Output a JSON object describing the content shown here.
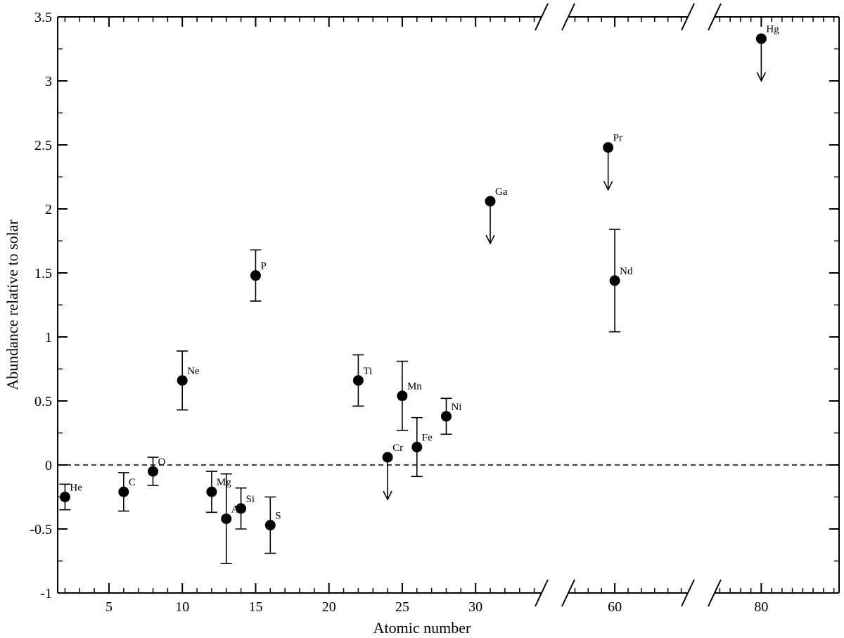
{
  "chart_data": {
    "type": "scatter",
    "xlabel": "Atomic number",
    "ylabel": "Abundance relative to solar",
    "ylim": [
      -1,
      3.5
    ],
    "y_ticks": [
      "-1",
      "-0.5",
      "0",
      "0.5",
      "1",
      "1.5",
      "2",
      "2.5",
      "3",
      "3.5"
    ],
    "reference_line": {
      "y": 0,
      "style": "dashed"
    },
    "axis_breaks": true,
    "panels": [
      {
        "xlim": [
          1.5,
          34.5
        ],
        "x_ticks": [
          "5",
          "10",
          "15",
          "20",
          "25",
          "30"
        ]
      },
      {
        "xlim": [
          53,
          71
        ],
        "x_ticks": [
          "60"
        ]
      },
      {
        "xlim": [
          71,
          95
        ],
        "x_ticks": [
          "80"
        ]
      }
    ],
    "points": [
      {
        "label": "He",
        "x": 2,
        "y": -0.25,
        "err_low": 0.1,
        "err_high": 0.1
      },
      {
        "label": "C",
        "x": 6,
        "y": -0.21,
        "err_low": 0.15,
        "err_high": 0.15
      },
      {
        "label": "O",
        "x": 8,
        "y": -0.05,
        "err_low": 0.11,
        "err_high": 0.11
      },
      {
        "label": "Ne",
        "x": 10,
        "y": 0.66,
        "err_low": 0.23,
        "err_high": 0.23
      },
      {
        "label": "Mg",
        "x": 12,
        "y": -0.21,
        "err_low": 0.16,
        "err_high": 0.16
      },
      {
        "label": "Al",
        "x": 13,
        "y": -0.42,
        "err_low": 0.35,
        "err_high": 0.35
      },
      {
        "label": "Si",
        "x": 14,
        "y": -0.34,
        "err_low": 0.16,
        "err_high": 0.16
      },
      {
        "label": "P",
        "x": 15,
        "y": 1.48,
        "err_low": 0.2,
        "err_high": 0.2
      },
      {
        "label": "S",
        "x": 16,
        "y": -0.47,
        "err_low": 0.22,
        "err_high": 0.22
      },
      {
        "label": "Ti",
        "x": 22,
        "y": 0.66,
        "err_low": 0.2,
        "err_high": 0.2
      },
      {
        "label": "Cr",
        "x": 24,
        "y": 0.06,
        "upper_limit": true
      },
      {
        "label": "Mn",
        "x": 25,
        "y": 0.54,
        "err_low": 0.27,
        "err_high": 0.27
      },
      {
        "label": "Fe",
        "x": 26,
        "y": 0.14,
        "err_low": 0.23,
        "err_high": 0.23
      },
      {
        "label": "Ni",
        "x": 28,
        "y": 0.38,
        "err_low": 0.14,
        "err_high": 0.14
      },
      {
        "label": "Ga",
        "x": 31,
        "y": 2.06,
        "upper_limit": true
      },
      {
        "label": "Pr",
        "x": 59,
        "y": 2.48,
        "upper_limit": true
      },
      {
        "label": "Nd",
        "x": 60,
        "y": 1.44,
        "err_low": 0.4,
        "err_high": 0.4
      },
      {
        "label": "Hg",
        "x": 80,
        "y": 3.33,
        "upper_limit": true
      }
    ]
  }
}
